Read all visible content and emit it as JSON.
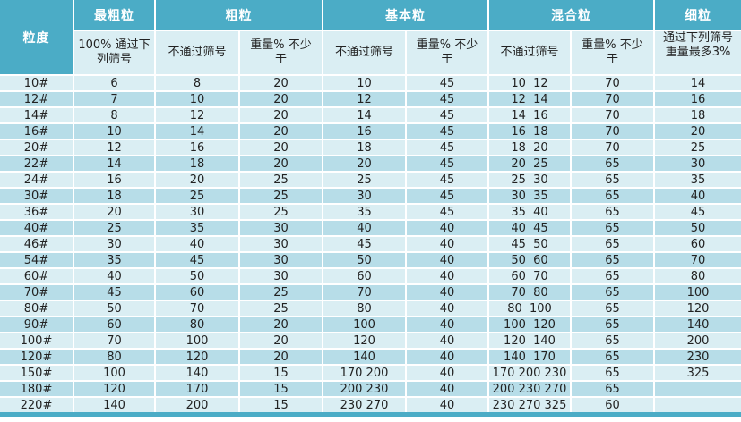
{
  "table": {
    "corner_label": "粒度",
    "groups": [
      "最粗粒",
      "粗粒",
      "基本粒",
      "混合粒",
      "细粒"
    ],
    "subheaders": [
      "100% 通过下列筛号",
      "不通过筛号",
      "重量% 不少于",
      "不通过筛号",
      "重量% 不少于",
      "不通过筛号",
      "重量% 不少于",
      "通过下列筛号重量最多3%"
    ],
    "rows": [
      [
        "10#",
        "6",
        "8",
        "20",
        "10",
        "45",
        "10  12",
        "70",
        "14"
      ],
      [
        "12#",
        "7",
        "10",
        "20",
        "12",
        "45",
        "12  14",
        "70",
        "16"
      ],
      [
        "14#",
        "8",
        "12",
        "20",
        "14",
        "45",
        "14  16",
        "70",
        "18"
      ],
      [
        "16#",
        "10",
        "14",
        "20",
        "16",
        "45",
        "16  18",
        "70",
        "20"
      ],
      [
        "20#",
        "12",
        "16",
        "20",
        "18",
        "45",
        "18  20",
        "70",
        "25"
      ],
      [
        "22#",
        "14",
        "18",
        "20",
        "20",
        "45",
        "20  25",
        "65",
        "30"
      ],
      [
        "24#",
        "16",
        "20",
        "25",
        "25",
        "45",
        "25  30",
        "65",
        "35"
      ],
      [
        "30#",
        "18",
        "25",
        "25",
        "30",
        "45",
        "30  35",
        "65",
        "40"
      ],
      [
        "36#",
        "20",
        "30",
        "25",
        "35",
        "45",
        "35  40",
        "65",
        "45"
      ],
      [
        "40#",
        "25",
        "35",
        "30",
        "40",
        "40",
        "40  45",
        "65",
        "50"
      ],
      [
        "46#",
        "30",
        "40",
        "30",
        "45",
        "40",
        "45  50",
        "65",
        "60"
      ],
      [
        "54#",
        "35",
        "45",
        "30",
        "50",
        "40",
        "50  60",
        "65",
        "70"
      ],
      [
        "60#",
        "40",
        "50",
        "30",
        "60",
        "40",
        "60  70",
        "65",
        "80"
      ],
      [
        "70#",
        "45",
        "60",
        "25",
        "70",
        "40",
        "70  80",
        "65",
        "100"
      ],
      [
        "80#",
        "50",
        "70",
        "25",
        "80",
        "40",
        "80  100",
        "65",
        "120"
      ],
      [
        "90#",
        "60",
        "80",
        "20",
        "100",
        "40",
        "100  120",
        "65",
        "140"
      ],
      [
        "100#",
        "70",
        "100",
        "20",
        "120",
        "40",
        "120  140",
        "65",
        "200"
      ],
      [
        "120#",
        "80",
        "120",
        "20",
        "140",
        "40",
        "140  170",
        "65",
        "230"
      ],
      [
        "150#",
        "100",
        "140",
        "15",
        "170 200",
        "40",
        "170 200 230",
        "65",
        "325"
      ],
      [
        "180#",
        "120",
        "170",
        "15",
        "200 230",
        "40",
        "200 230 270",
        "65",
        ""
      ],
      [
        "220#",
        "140",
        "200",
        "15",
        "230 270",
        "40",
        "230 270 325",
        "60",
        ""
      ]
    ],
    "colors": {
      "header_teal": "#4BACC6",
      "row_light": "#DAEEF3",
      "row_dark": "#B7DDE8",
      "grid_line": "#FFFFFF",
      "header_text": "#FFFFFF",
      "body_text": "#222222"
    }
  }
}
